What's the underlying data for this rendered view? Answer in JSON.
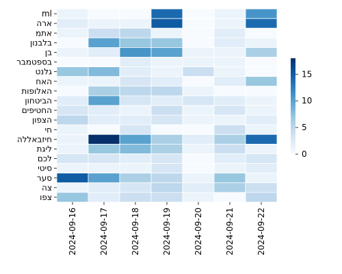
{
  "chart_data": {
    "type": "heatmap",
    "title": "",
    "xlabel": "",
    "ylabel": "",
    "x": [
      "2024-09-16",
      "2024-09-17",
      "2024-09-18",
      "2024-09-19",
      "2024-09-20",
      "2024-09-21",
      "2024-09-22"
    ],
    "y": [
      "ml",
      "ארה",
      "אתמ",
      "בלבנון",
      "בן",
      "בספטמבר",
      "גלנט",
      "האח",
      "האלופות",
      "הביטחון",
      "החטיפים",
      "הצפון",
      "חי",
      "חיזבאללה",
      "ליגת",
      "לכם",
      "סיטי",
      "סער",
      "צה",
      "צפו"
    ],
    "values": [
      [
        1,
        0,
        0,
        14,
        0,
        1,
        11
      ],
      [
        2,
        1,
        1,
        15,
        0,
        1,
        14
      ],
      [
        1,
        4,
        5,
        1,
        0,
        2,
        0
      ],
      [
        0,
        10,
        7,
        7,
        0,
        2,
        1
      ],
      [
        1,
        2,
        11,
        10,
        1,
        1,
        6
      ],
      [
        0,
        0,
        2,
        1,
        1,
        1,
        0
      ],
      [
        7,
        8,
        2,
        1,
        4,
        1,
        0
      ],
      [
        1,
        1,
        3,
        2,
        0,
        2,
        7
      ],
      [
        0,
        6,
        5,
        5,
        1,
        0,
        0
      ],
      [
        2,
        10,
        3,
        2,
        3,
        2,
        1
      ],
      [
        3,
        2,
        1,
        4,
        1,
        3,
        1
      ],
      [
        5,
        2,
        2,
        3,
        1,
        1,
        2
      ],
      [
        1,
        0,
        3,
        0,
        0,
        4,
        1
      ],
      [
        1,
        18,
        10,
        6,
        2,
        6,
        14
      ],
      [
        1,
        7,
        8,
        6,
        1,
        4,
        1
      ],
      [
        3,
        3,
        2,
        3,
        0,
        2,
        3
      ],
      [
        1,
        1,
        1,
        3,
        0,
        1,
        2
      ],
      [
        15,
        10,
        6,
        5,
        1,
        7,
        1
      ],
      [
        1,
        2,
        3,
        5,
        2,
        6,
        4
      ],
      [
        7,
        2,
        4,
        4,
        1,
        0,
        5
      ]
    ],
    "colorbar": {
      "min": 0,
      "max": 18,
      "ticks": [
        0,
        5,
        10,
        15
      ]
    },
    "colors": {
      "low": "#f7fbff",
      "mid": "#6baed6",
      "high": "#08306b"
    }
  }
}
